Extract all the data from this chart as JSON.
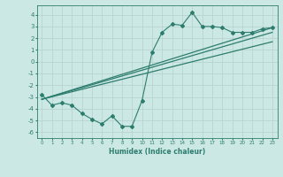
{
  "xlabel": "Humidex (Indice chaleur)",
  "x_values": [
    0,
    1,
    2,
    3,
    4,
    5,
    6,
    7,
    8,
    9,
    10,
    11,
    12,
    13,
    14,
    15,
    16,
    17,
    18,
    19,
    20,
    21,
    22,
    23
  ],
  "y_scatter": [
    -2.8,
    -3.7,
    -3.5,
    -3.7,
    -4.4,
    -4.9,
    -5.3,
    -4.6,
    -5.5,
    -5.5,
    -3.3,
    0.8,
    2.5,
    3.2,
    3.1,
    4.2,
    3.0,
    3.0,
    2.9,
    2.5,
    2.5,
    2.5,
    2.8,
    2.9
  ],
  "reg_lines": [
    {
      "x0": 0,
      "y0": -3.2,
      "x1": 23,
      "y1": 2.9
    },
    {
      "x0": 0,
      "y0": -3.2,
      "x1": 23,
      "y1": 2.5
    },
    {
      "x0": 0,
      "y0": -3.2,
      "x1": 23,
      "y1": 1.7
    }
  ],
  "ylim": [
    -6.5,
    4.8
  ],
  "xlim": [
    -0.5,
    23.5
  ],
  "line_color": "#2d7d6e",
  "bg_color": "#cce8e4",
  "grid_color": "#b8d4d0",
  "tick_color": "#2d7d6e"
}
